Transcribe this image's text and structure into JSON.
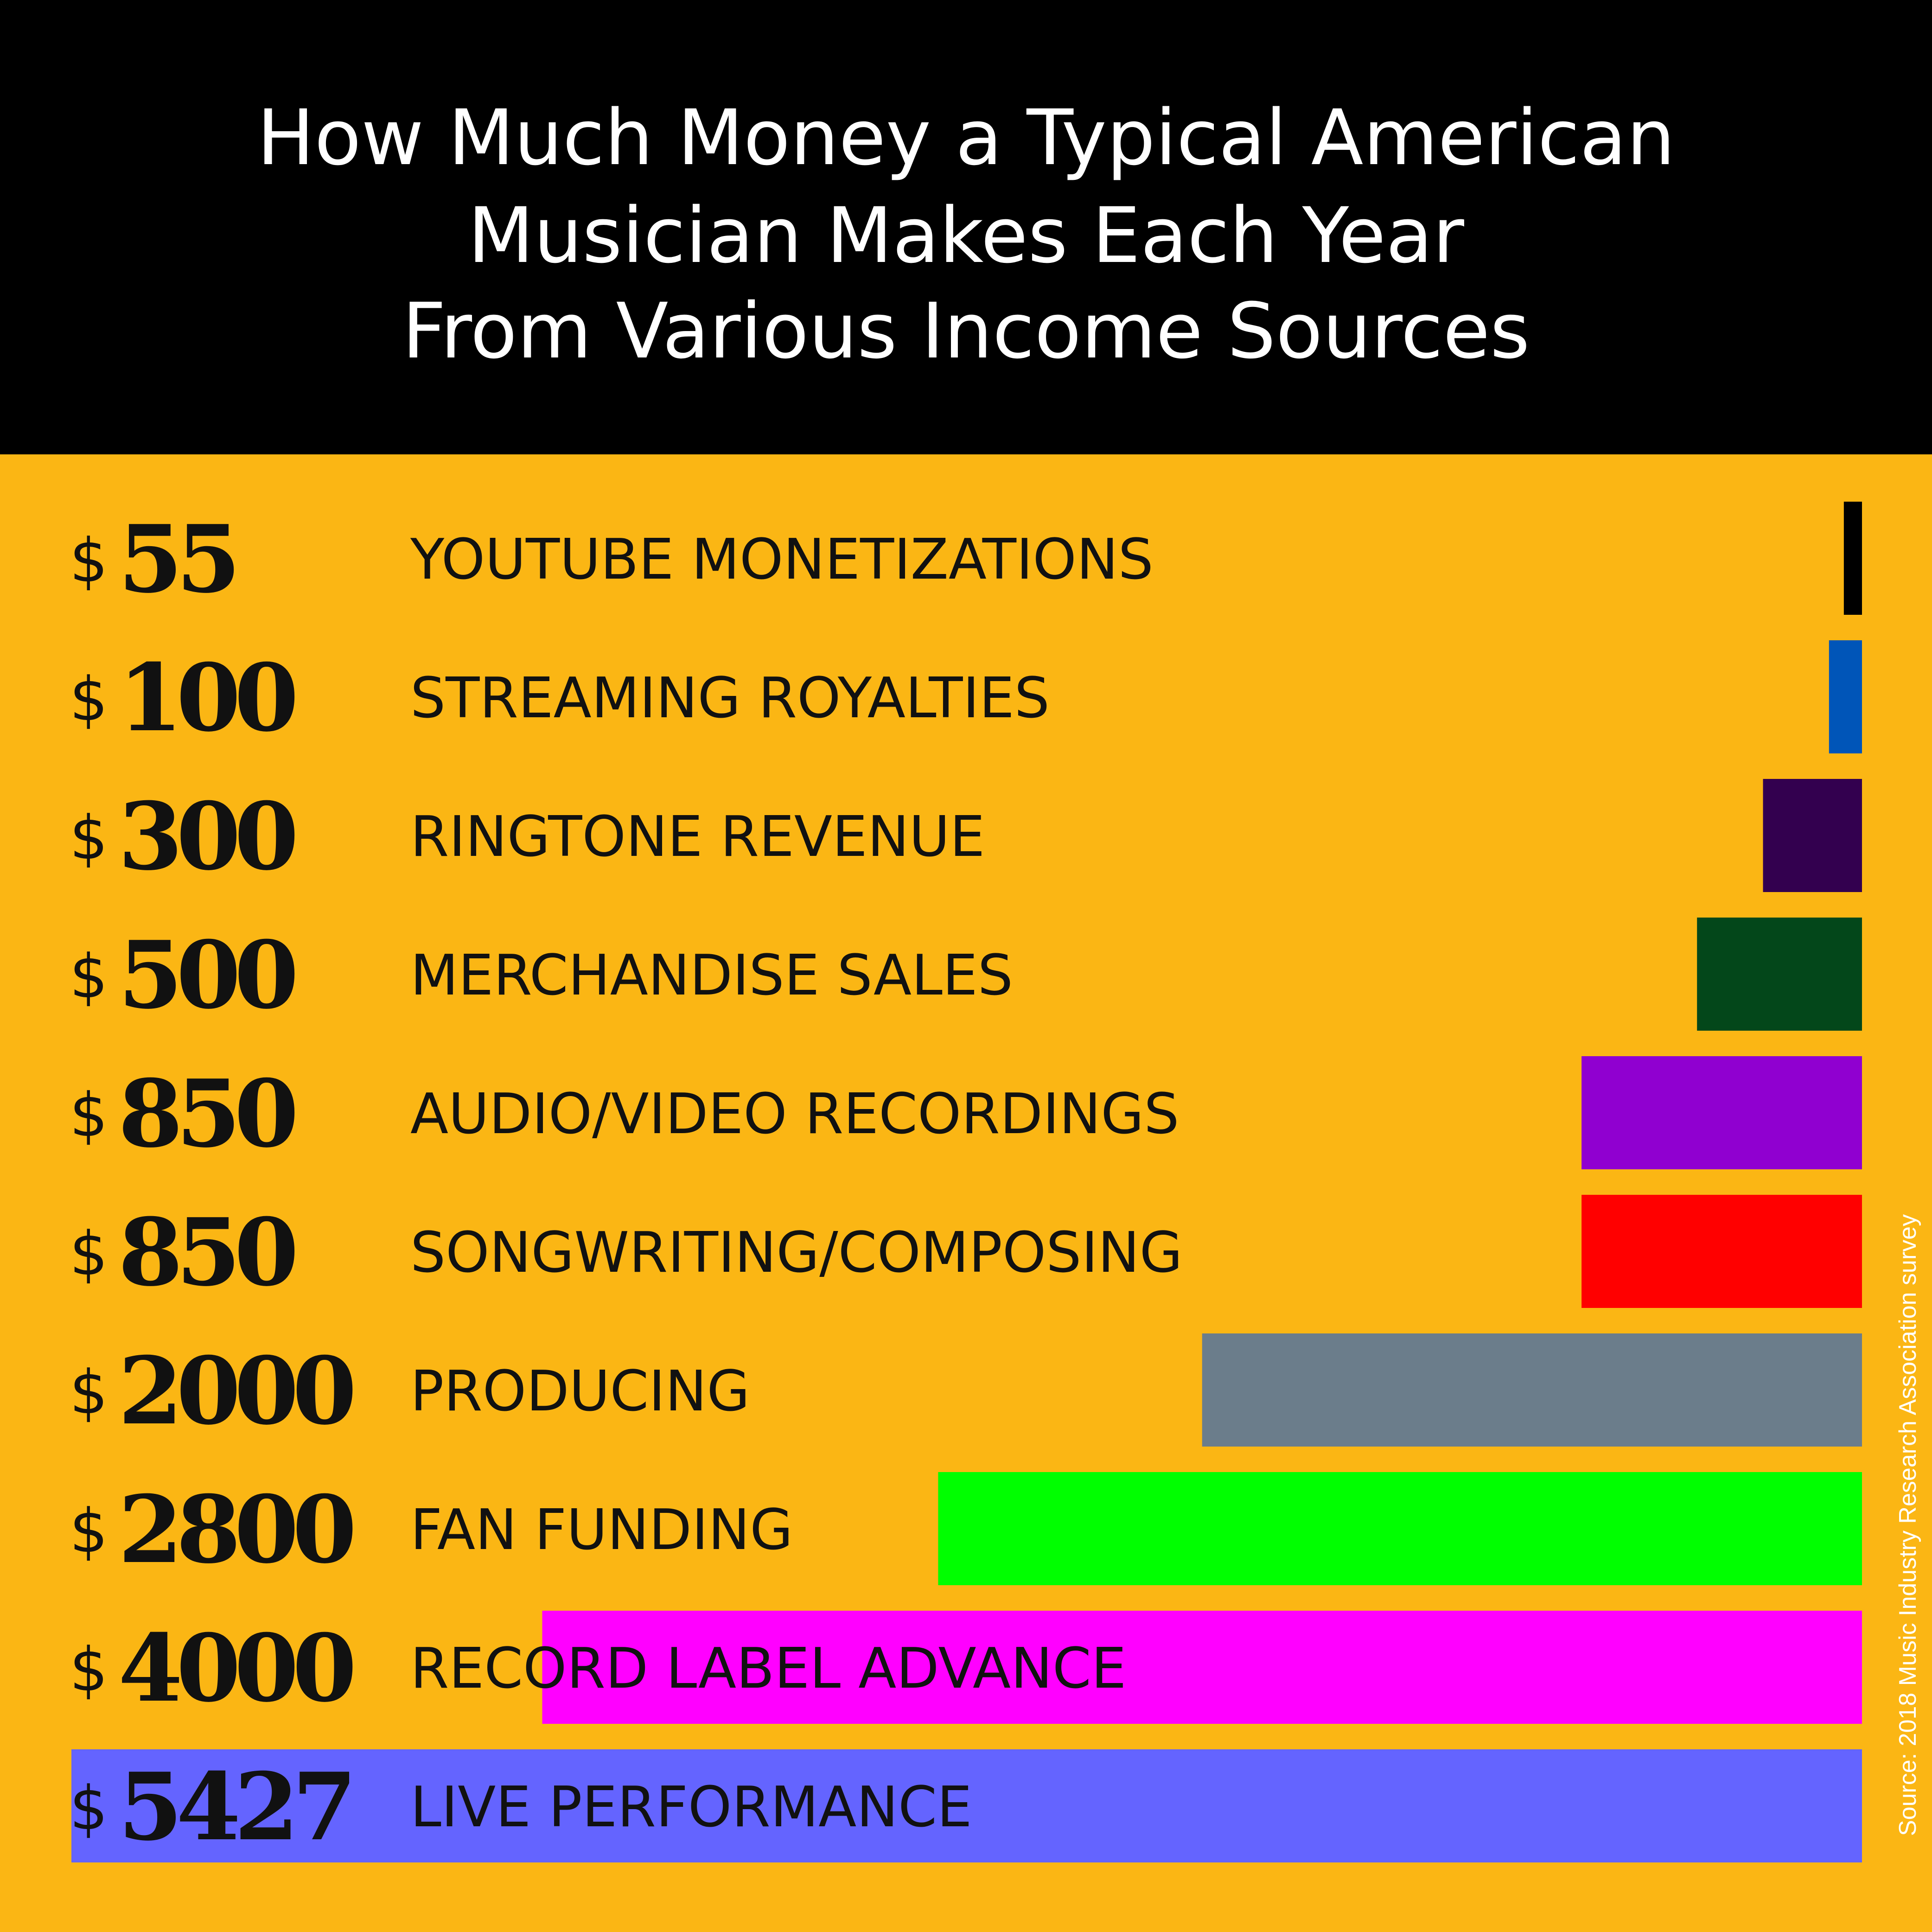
{
  "title_lines": [
    "How Much Money a Typical American",
    "Musician Makes Each Year",
    "From Various Income Sources"
  ],
  "source": "Source: 2018 Music Industry Research Association survey",
  "colors": {
    "header_bg": "#000000",
    "page_bg": "#fbb614"
  },
  "chart_data": {
    "type": "bar",
    "orientation": "horizontal",
    "currency_symbol": "$",
    "categories": [
      "YOUTUBE MONETIZATIONS",
      "STREAMING ROYALTIES",
      "RINGTONE REVENUE",
      "MERCHANDISE SALES",
      "AUDIO/VIDEO RECORDINGS",
      "SONGWRITING/COMPOSING",
      "PRODUCING",
      "FAN FUNDING",
      "RECORD LABEL ADVANCE",
      "LIVE PERFORMANCE"
    ],
    "values": [
      55,
      100,
      300,
      500,
      850,
      850,
      2000,
      2800,
      4000,
      5427
    ],
    "bar_colors": [
      "#000000",
      "#0055b8",
      "#33004f",
      "#03471a",
      "#9000d0",
      "#ff0000",
      "#6b7d8b",
      "#00ff00",
      "#ff00ff",
      "#6464ff"
    ],
    "xlim": [
      0,
      5427
    ],
    "grid": false,
    "legend": "none"
  }
}
